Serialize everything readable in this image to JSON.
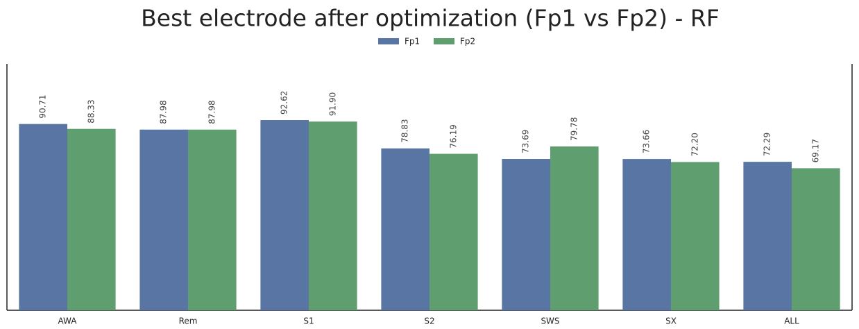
{
  "chart_data": {
    "type": "bar",
    "title": "Best electrode after optimization (Fp1 vs Fp2) - RF",
    "categories": [
      "AWA",
      "Rem",
      "S1",
      "S2",
      "SWS",
      "SX",
      "ALL"
    ],
    "series": [
      {
        "name": "Fp1",
        "color": "#5975a4",
        "values": [
          90.71,
          87.98,
          92.62,
          78.83,
          73.69,
          73.66,
          72.29
        ],
        "value_labels": [
          "90.71",
          "87.98",
          "92.62",
          "78.83",
          "73.69",
          "73.66",
          "72.29"
        ]
      },
      {
        "name": "Fp2",
        "color": "#5f9e6e",
        "values": [
          88.33,
          87.98,
          91.9,
          76.19,
          79.78,
          72.2,
          69.17
        ],
        "value_labels": [
          "88.33",
          "87.98",
          "91.90",
          "76.19",
          "79.78",
          "72.20",
          "69.17"
        ]
      }
    ],
    "ylim": [
      0,
      120
    ],
    "legend": "top"
  }
}
